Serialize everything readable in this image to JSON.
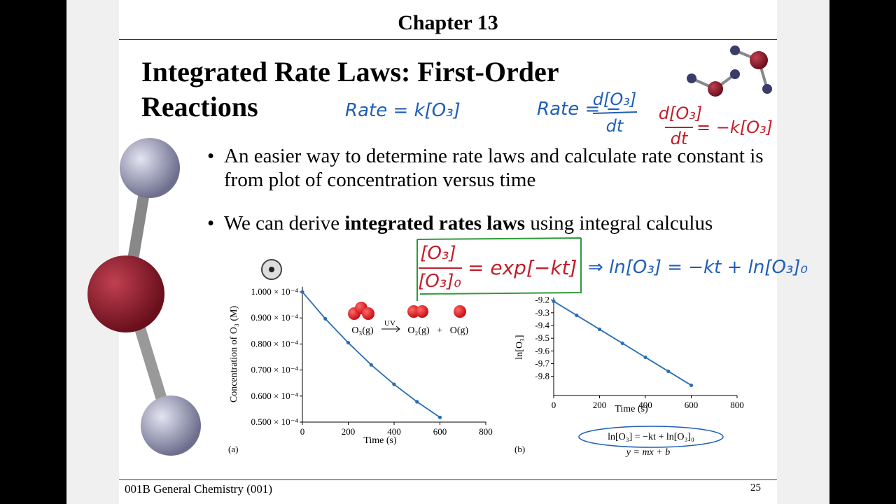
{
  "header": {
    "title": "Chapter 13"
  },
  "slide": {
    "title": "Integrated Rate Laws: First-Order Reactions",
    "bullets": [
      {
        "parts": [
          "An easier way to determine rate laws and calculate rate constant is from plot of concentration versus time"
        ]
      },
      {
        "parts": [
          "We can derive ",
          "integrated rates laws",
          " using integral calculus"
        ]
      }
    ]
  },
  "annotations": [
    {
      "text": "Rate = k[O₃]",
      "color": "#1f5fb8"
    },
    {
      "text": "Rate = −",
      "color": "#1f5fb8"
    },
    {
      "text": "d[O₃]",
      "color": "#1f5fb8"
    },
    {
      "text": "dt",
      "color": "#1f5fb8"
    },
    {
      "text": "d[O₃]",
      "color": "#c41e2a"
    },
    {
      "text": "dt",
      "color": "#c41e2a"
    },
    {
      "text": "= −k[O₃]",
      "color": "#c41e2a"
    },
    {
      "text": "[O₃]",
      "color": "#c41e2a"
    },
    {
      "text": "[O₃]₀",
      "color": "#c41e2a"
    },
    {
      "text": "= exp[−kt]",
      "color": "#c41e2a"
    },
    {
      "text": "⇒ ln[O₃] = −kt + ln[O₃]₀",
      "color": "#1f5fb8"
    }
  ],
  "reaction": {
    "reactant": "O₃(g)",
    "condition": "UV",
    "product1": "O₂(g)",
    "plus": "+",
    "product2": "O(g)"
  },
  "chart_data": [
    {
      "type": "line",
      "panel": "(a)",
      "x_label": "Time (s)",
      "y_label": "Concentration of O₃ (M)",
      "x": [
        0,
        100,
        200,
        300,
        400,
        500,
        600
      ],
      "series": [
        {
          "color": "#2a6db5",
          "values": [
            0.0001,
            8.97e-05,
            8.05e-05,
            7.2e-05,
            6.45e-05,
            5.78e-05,
            5.18e-05
          ]
        }
      ],
      "xlim": [
        0,
        800
      ],
      "xticks": [
        0,
        200,
        400,
        600,
        800
      ],
      "ylim": [
        5e-05,
        0.000102
      ],
      "yticks": [
        {
          "value": 0.0001,
          "label": "1.000 × 10⁻⁴"
        },
        {
          "value": 9e-05,
          "label": "0.900 × 10⁻⁴"
        },
        {
          "value": 8e-05,
          "label": "0.800 × 10⁻⁴"
        },
        {
          "value": 7e-05,
          "label": "0.700 × 10⁻⁴"
        },
        {
          "value": 6e-05,
          "label": "0.600 × 10⁻⁴"
        },
        {
          "value": 5e-05,
          "label": "0.500 × 10⁻⁴"
        }
      ]
    },
    {
      "type": "line",
      "panel": "(b)",
      "x_label": "Time (s)",
      "y_label": "ln[O₃]",
      "x": [
        0,
        100,
        200,
        300,
        400,
        500,
        600
      ],
      "series": [
        {
          "color": "#2a6db5",
          "values": [
            -9.21,
            -9.32,
            -9.43,
            -9.54,
            -9.65,
            -9.76,
            -9.87
          ]
        }
      ],
      "xlim": [
        0,
        800
      ],
      "xticks": [
        0,
        200,
        400,
        600,
        800
      ],
      "ylim": [
        -9.95,
        -9.18
      ],
      "yticks": [
        -9.2,
        -9.3,
        -9.4,
        -9.5,
        -9.6,
        -9.7,
        -9.8
      ]
    }
  ],
  "equation": "ln[O₃] = −kt + ln[O₃]₀",
  "linear_form": "y = mx + b",
  "footer": {
    "course": "001B General Chemistry (001)",
    "page": "25"
  }
}
